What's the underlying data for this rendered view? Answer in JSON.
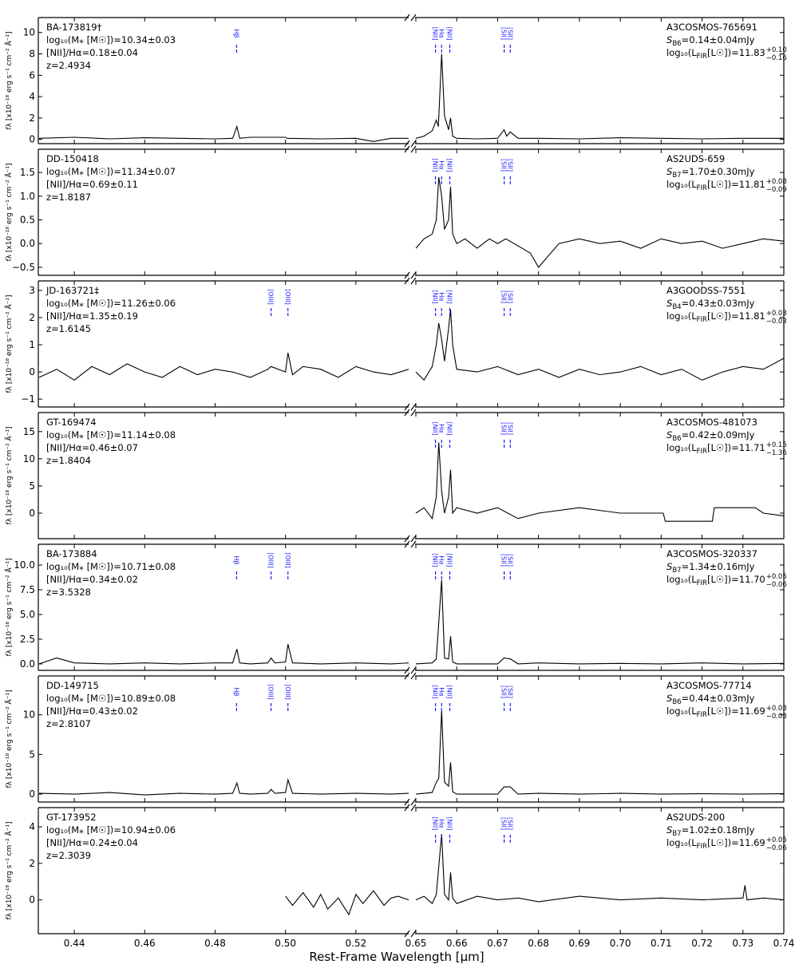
{
  "x_axis": {
    "label": "Rest-Frame Wavelength [μm]",
    "segments": [
      {
        "xlim": [
          0.43,
          0.535
        ],
        "xticks": [
          0.44,
          0.46,
          0.48,
          {
            "value": 0.5,
            "label": "0.50"
          },
          0.52
        ]
      },
      {
        "xlim": [
          0.65,
          0.74
        ],
        "xticks": [
          0.65,
          0.66,
          0.67,
          0.68,
          0.69,
          {
            "value": 0.7,
            "label": "0.70"
          },
          0.71,
          0.72,
          0.73,
          0.74
        ]
      }
    ]
  },
  "chart_data": [
    {
      "type": "line",
      "ylabel": "fλ [x10⁻¹⁸ erg s⁻¹ cm⁻² Å⁻¹]",
      "ylim": [
        -0.4,
        11.4
      ],
      "yticks": [
        0,
        2,
        4,
        6,
        8,
        10
      ],
      "name": "BA-173819†",
      "mass": "log₁₀(M⁎ [M☉])=10.34±0.03",
      "ratio": "[NII]/Hα=0.18±0.04",
      "z": "z=2.4934",
      "alma": "A3COSMOS-765691",
      "s": {
        "parts": [
          "S",
          "B6",
          "=0.14±0.04mJy"
        ]
      },
      "fir": {
        "parts": [
          "log₁₀(L",
          "FIR",
          "[L☉])=11.83"
        ],
        "upper": "+0.10",
        "lower": "−0.16"
      },
      "lines": [
        {
          "label": "Hβ",
          "x": 0.4861
        },
        {
          "label": "[NII]",
          "x": 0.6548
        },
        {
          "label": "Hα",
          "x": 0.6563
        },
        {
          "label": "[NII]",
          "x": 0.6583
        },
        {
          "label": "[SII]",
          "x": 0.6716
        },
        {
          "label": "[SII]",
          "x": 0.6731
        }
      ],
      "spectrum": [
        {
          "x": [
            0.43,
            0.44,
            0.45,
            0.46,
            0.47,
            0.48,
            0.485,
            0.4862,
            0.487,
            0.49,
            0.5,
            0.5005,
            0.51,
            0.52,
            0.525,
            0.53,
            0.535
          ],
          "values": [
            0.1,
            0.2,
            0.05,
            0.15,
            0.1,
            0.05,
            0.1,
            1.2,
            0.1,
            0.2,
            0.2,
            0.1,
            0.05,
            0.1,
            -0.2,
            0.1,
            0.1
          ]
        },
        {
          "x": [
            0.65,
            0.652,
            0.654,
            0.655,
            0.6555,
            0.6563,
            0.657,
            0.658,
            0.6585,
            0.659,
            0.66,
            0.665,
            0.67,
            0.6716,
            0.6722,
            0.6731,
            0.675,
            0.68,
            0.69,
            0.7,
            0.71,
            0.72,
            0.73,
            0.74
          ],
          "values": [
            0.1,
            0.3,
            0.8,
            1.8,
            1.2,
            8.0,
            2.2,
            0.9,
            2.0,
            0.3,
            0.1,
            0.05,
            0.1,
            0.9,
            0.3,
            0.7,
            0.1,
            0.1,
            0.05,
            0.15,
            0.1,
            0.05,
            0.1,
            0.1
          ]
        }
      ]
    },
    {
      "type": "line",
      "ylabel": "fλ [x10⁻¹⁸ erg s⁻¹ cm⁻² Å⁻¹]",
      "ylim": [
        -0.67,
        1.99
      ],
      "yticks": [
        {
          "value": -0.5,
          "label": "−0.5"
        },
        {
          "value": 0,
          "label": "0.0"
        },
        0.5,
        {
          "value": 1,
          "label": "1.0"
        },
        1.5
      ],
      "name": "DD-150418",
      "mass": "log₁₀(M⁎ [M☉])=11.34±0.07",
      "ratio": "[NII]/Hα=0.69±0.11",
      "z": "z=1.8187",
      "alma": "AS2UDS-659",
      "s": {
        "parts": [
          "S",
          "B7",
          "=1.70±0.30mJy"
        ]
      },
      "fir": {
        "parts": [
          "log₁₀(L",
          "FIR",
          "[L☉])=11.81"
        ],
        "upper": "+0.08",
        "lower": "−0.09"
      },
      "lines": [
        {
          "label": "[NII]",
          "x": 0.6548
        },
        {
          "label": "Hα",
          "x": 0.6563
        },
        {
          "label": "[NII]",
          "x": 0.6583
        },
        {
          "label": "[SII]",
          "x": 0.6716
        },
        {
          "label": "[SII]",
          "x": 0.6731
        }
      ],
      "spectrum": [
        {
          "x": [
            0.65,
            0.652,
            0.654,
            0.655,
            0.6556,
            0.6563,
            0.657,
            0.658,
            0.6585,
            0.659,
            0.66,
            0.662,
            0.665,
            0.668,
            0.67,
            0.672,
            0.675,
            0.678,
            0.68,
            0.685,
            0.69,
            0.695,
            0.7,
            0.705,
            0.71,
            0.715,
            0.72,
            0.725,
            0.73,
            0.735,
            0.74
          ],
          "values": [
            -0.1,
            0.1,
            0.2,
            0.5,
            1.4,
            1.0,
            0.3,
            0.5,
            1.2,
            0.2,
            0.0,
            0.1,
            -0.1,
            0.1,
            0.0,
            0.1,
            -0.05,
            -0.2,
            -0.5,
            0.0,
            0.1,
            0.0,
            0.05,
            -0.1,
            0.1,
            0.0,
            0.05,
            -0.1,
            0.0,
            0.1,
            0.05
          ]
        }
      ]
    },
    {
      "type": "line",
      "ylabel": "fλ [x10⁻¹⁸ erg s⁻¹ cm⁻² Å⁻¹]",
      "ylim": [
        -1.29,
        3.35
      ],
      "yticks": [
        {
          "value": -1,
          "label": "−1"
        },
        0,
        1,
        2,
        3
      ],
      "name": "JD-163721‡",
      "mass": "log₁₀(M⁎ [M☉])=11.26±0.06",
      "ratio": "[NII]/Hα=1.35±0.19",
      "z": "z=1.6145",
      "alma": "A3GOODSS-7551",
      "s": {
        "parts": [
          "S",
          "B4",
          "=0.43±0.03mJy"
        ]
      },
      "fir": {
        "parts": [
          "log₁₀(L",
          "FIR",
          "[L☉])=11.81"
        ],
        "upper": "+0.03",
        "lower": "−0.03"
      },
      "lines": [
        {
          "label": "[OIII]",
          "x": 0.4959
        },
        {
          "label": "[OIII]",
          "x": 0.5007
        },
        {
          "label": "[NII]",
          "x": 0.6548
        },
        {
          "label": "Hα",
          "x": 0.6563
        },
        {
          "label": "[NII]",
          "x": 0.6583
        },
        {
          "label": "[SII]",
          "x": 0.6716
        },
        {
          "label": "[SII]",
          "x": 0.6731
        }
      ],
      "spectrum": [
        {
          "x": [
            0.43,
            0.435,
            0.44,
            0.445,
            0.45,
            0.455,
            0.46,
            0.465,
            0.47,
            0.475,
            0.48,
            0.485,
            0.49,
            0.495,
            0.4959,
            0.5,
            0.5007,
            0.502,
            0.505,
            0.51,
            0.515,
            0.52,
            0.525,
            0.53,
            0.535
          ],
          "values": [
            -0.2,
            0.1,
            -0.3,
            0.2,
            -0.1,
            0.3,
            0.0,
            -0.2,
            0.2,
            -0.1,
            0.1,
            0.0,
            -0.2,
            0.1,
            0.2,
            0.0,
            0.7,
            -0.1,
            0.2,
            0.1,
            -0.2,
            0.2,
            0.0,
            -0.1,
            0.1
          ]
        },
        {
          "x": [
            0.65,
            0.652,
            0.654,
            0.655,
            0.6556,
            0.6563,
            0.657,
            0.658,
            0.6585,
            0.659,
            0.66,
            0.665,
            0.67,
            0.675,
            0.68,
            0.685,
            0.69,
            0.695,
            0.7,
            0.705,
            0.71,
            0.715,
            0.72,
            0.725,
            0.73,
            0.735,
            0.74
          ],
          "values": [
            0.0,
            -0.3,
            0.2,
            1.0,
            1.8,
            1.2,
            0.4,
            1.6,
            2.3,
            1.0,
            0.1,
            0.0,
            0.2,
            -0.1,
            0.1,
            -0.2,
            0.1,
            -0.1,
            0.0,
            0.2,
            -0.1,
            0.1,
            -0.3,
            0.0,
            0.2,
            0.1,
            0.5
          ]
        }
      ]
    },
    {
      "type": "line",
      "ylabel": "fλ [x10⁻¹⁸ erg s⁻¹ cm⁻² Å⁻¹]",
      "ylim": [
        -4.7,
        18.5
      ],
      "yticks": [
        0,
        5,
        10,
        15
      ],
      "name": "GT-169474",
      "mass": "log₁₀(M⁎ [M☉])=11.14±0.08",
      "ratio": "[NII]/Hα=0.46±0.07",
      "z": "z=1.8404",
      "alma": "A3COSMOS-481073",
      "s": {
        "parts": [
          "S",
          "B6",
          "=0.42±0.09mJy"
        ]
      },
      "fir": {
        "parts": [
          "log₁₀(L",
          "FIR",
          "[L☉])=11.71"
        ],
        "upper": "+0.15",
        "lower": "−1.36"
      },
      "lines": [
        {
          "label": "[NII]",
          "x": 0.6548
        },
        {
          "label": "Hα",
          "x": 0.6563
        },
        {
          "label": "[NII]",
          "x": 0.6583
        },
        {
          "label": "[SII]",
          "x": 0.6716
        },
        {
          "label": "[SII]",
          "x": 0.6731
        }
      ],
      "spectrum": [
        {
          "x": [
            0.65,
            0.652,
            0.654,
            0.655,
            0.6556,
            0.6563,
            0.657,
            0.658,
            0.6585,
            0.659,
            0.66,
            0.665,
            0.67,
            0.675,
            0.68,
            0.69,
            0.7,
            0.7105,
            0.711,
            0.7225,
            0.723,
            0.733,
            0.735,
            0.74
          ],
          "values": [
            0,
            1,
            -1,
            3,
            13,
            4,
            0,
            3,
            8,
            0,
            1,
            0,
            1,
            -1,
            0,
            1,
            0,
            0,
            -1.5,
            -1.5,
            1,
            1,
            0,
            -0.5
          ]
        }
      ]
    },
    {
      "type": "line",
      "ylabel": "fλ [x10⁻¹⁸ erg s⁻¹ cm⁻² Å⁻¹]",
      "ylim": [
        -0.65,
        12.1
      ],
      "yticks": [
        {
          "value": 0,
          "label": "0.0"
        },
        2.5,
        {
          "value": 5,
          "label": "5.0"
        },
        7.5,
        {
          "value": 10,
          "label": "10.0"
        }
      ],
      "name": "BA-173884",
      "mass": "log₁₀(M⁎ [M☉])=10.71±0.08",
      "ratio": "[NII]/Hα=0.34±0.02",
      "z": "z=3.5328",
      "alma": "A3COSMOS-320337",
      "s": {
        "parts": [
          "S",
          "B7",
          "=1.34±0.16mJy"
        ]
      },
      "fir": {
        "parts": [
          "log₁₀(L",
          "FIR",
          "[L☉])=11.70"
        ],
        "upper": "+0.05",
        "lower": "−0.06"
      },
      "lines": [
        {
          "label": "Hβ",
          "x": 0.4861
        },
        {
          "label": "[OIII]",
          "x": 0.4959
        },
        {
          "label": "[OIII]",
          "x": 0.5007
        },
        {
          "label": "[NII]",
          "x": 0.6548
        },
        {
          "label": "Hα",
          "x": 0.6563
        },
        {
          "label": "[NII]",
          "x": 0.6583
        },
        {
          "label": "[SII]",
          "x": 0.6716
        },
        {
          "label": "[SII]",
          "x": 0.6731
        }
      ],
      "spectrum": [
        {
          "x": [
            0.43,
            0.435,
            0.44,
            0.45,
            0.46,
            0.47,
            0.48,
            0.485,
            0.4862,
            0.487,
            0.49,
            0.495,
            0.4959,
            0.497,
            0.5,
            0.5007,
            0.502,
            0.51,
            0.52,
            0.53,
            0.535
          ],
          "values": [
            0.0,
            0.6,
            0.1,
            0.0,
            0.1,
            0.0,
            0.1,
            0.1,
            1.5,
            0.1,
            0.0,
            0.1,
            0.6,
            0.1,
            0.2,
            2.0,
            0.1,
            0.0,
            0.1,
            0.0,
            0.1
          ]
        },
        {
          "x": [
            0.65,
            0.654,
            0.655,
            0.6563,
            0.657,
            0.658,
            0.6585,
            0.659,
            0.66,
            0.67,
            0.6716,
            0.6731,
            0.675,
            0.68,
            0.69,
            0.7,
            0.71,
            0.72,
            0.73,
            0.74
          ],
          "values": [
            0.0,
            0.1,
            0.5,
            8.5,
            0.6,
            0.5,
            2.8,
            0.2,
            0.0,
            0.0,
            0.6,
            0.5,
            0.0,
            0.1,
            0.0,
            0.05,
            0.0,
            0.1,
            0.0,
            0.05
          ]
        }
      ]
    },
    {
      "type": "line",
      "ylabel": "fλ [x10⁻¹⁸ erg s⁻¹ cm⁻² Å⁻¹]",
      "ylim": [
        -1.0,
        14.9
      ],
      "yticks": [
        0,
        5,
        10
      ],
      "name": "DD-149715",
      "mass": "log₁₀(M⁎ [M☉])=10.89±0.08",
      "ratio": "[NII]/Hα=0.43±0.02",
      "z": "z=2.8107",
      "alma": "A3COSMOS-77714",
      "s": {
        "parts": [
          "S",
          "B6",
          "=0.44±0.03mJy"
        ]
      },
      "fir": {
        "parts": [
          "log₁₀(L",
          "FIR",
          "[L☉])=11.69"
        ],
        "upper": "+0.03",
        "lower": "−0.03"
      },
      "lines": [
        {
          "label": "Hβ",
          "x": 0.4861
        },
        {
          "label": "[OIII]",
          "x": 0.4959
        },
        {
          "label": "[OIII]",
          "x": 0.5007
        },
        {
          "label": "[NII]",
          "x": 0.6548
        },
        {
          "label": "Hα",
          "x": 0.6563
        },
        {
          "label": "[NII]",
          "x": 0.6583
        },
        {
          "label": "[SII]",
          "x": 0.6716
        },
        {
          "label": "[SII]",
          "x": 0.6731
        }
      ],
      "spectrum": [
        {
          "x": [
            0.43,
            0.44,
            0.45,
            0.46,
            0.47,
            0.48,
            0.485,
            0.4862,
            0.487,
            0.49,
            0.495,
            0.4959,
            0.497,
            0.5,
            0.5007,
            0.502,
            0.51,
            0.52,
            0.53,
            0.535
          ],
          "values": [
            0.1,
            0.0,
            0.2,
            -0.1,
            0.1,
            0.0,
            0.1,
            1.4,
            0.1,
            0.0,
            0.1,
            0.6,
            0.1,
            0.2,
            1.8,
            0.1,
            0.0,
            0.1,
            0.0,
            0.1
          ]
        },
        {
          "x": [
            0.65,
            0.654,
            0.655,
            0.6556,
            0.6563,
            0.657,
            0.658,
            0.6585,
            0.659,
            0.66,
            0.67,
            0.6716,
            0.6731,
            0.675,
            0.68,
            0.69,
            0.7,
            0.71,
            0.72,
            0.73,
            0.74
          ],
          "values": [
            0.0,
            0.2,
            1.5,
            2.0,
            10.5,
            1.5,
            1.0,
            4.0,
            0.3,
            0.0,
            0.0,
            0.9,
            0.9,
            0.0,
            0.1,
            0.0,
            0.1,
            0.0,
            0.05,
            0.0,
            0.05
          ]
        }
      ]
    },
    {
      "type": "line",
      "ylabel": "fλ [x10⁻¹⁸ erg s⁻¹ cm⁻² Å⁻¹]",
      "ylim": [
        -1.85,
        5.05
      ],
      "yticks": [
        0,
        2,
        4
      ],
      "name": "GT-173952",
      "mass": "log₁₀(M⁎ [M☉])=10.94±0.06",
      "ratio": "[NII]/Hα=0.24±0.04",
      "z": "z=2.3039",
      "alma": "AS2UDS-200",
      "s": {
        "parts": [
          "S",
          "B7",
          "=1.02±0.18mJy"
        ]
      },
      "fir": {
        "parts": [
          "log₁₀(L",
          "FIR",
          "[L☉])=11.69"
        ],
        "upper": "+0.05",
        "lower": "−0.06"
      },
      "lines": [
        {
          "label": "[NII]",
          "x": 0.6548
        },
        {
          "label": "Hα",
          "x": 0.6563
        },
        {
          "label": "[NII]",
          "x": 0.6583
        },
        {
          "label": "[SII]",
          "x": 0.6716
        },
        {
          "label": "[SII]",
          "x": 0.6731
        }
      ],
      "spectrum": [
        {
          "x": [
            0.5,
            0.502,
            0.505,
            0.508,
            0.51,
            0.512,
            0.515,
            0.518,
            0.52,
            0.522,
            0.525,
            0.528,
            0.53,
            0.532,
            0.535
          ],
          "values": [
            0.2,
            -0.3,
            0.4,
            -0.4,
            0.3,
            -0.5,
            0.1,
            -0.8,
            0.3,
            -0.2,
            0.5,
            -0.3,
            0.1,
            0.2,
            0.0
          ]
        },
        {
          "x": [
            0.65,
            0.652,
            0.654,
            0.655,
            0.6563,
            0.657,
            0.658,
            0.6585,
            0.659,
            0.66,
            0.665,
            0.67,
            0.675,
            0.68,
            0.69,
            0.7,
            0.71,
            0.72,
            0.73,
            0.7305,
            0.731,
            0.735,
            0.74
          ],
          "values": [
            0.0,
            0.2,
            -0.2,
            0.3,
            3.6,
            0.3,
            0.0,
            1.5,
            0.1,
            -0.2,
            0.2,
            0.0,
            0.1,
            -0.1,
            0.2,
            0.0,
            0.1,
            0.0,
            0.1,
            0.8,
            0.0,
            0.1,
            0.0
          ]
        }
      ]
    }
  ]
}
